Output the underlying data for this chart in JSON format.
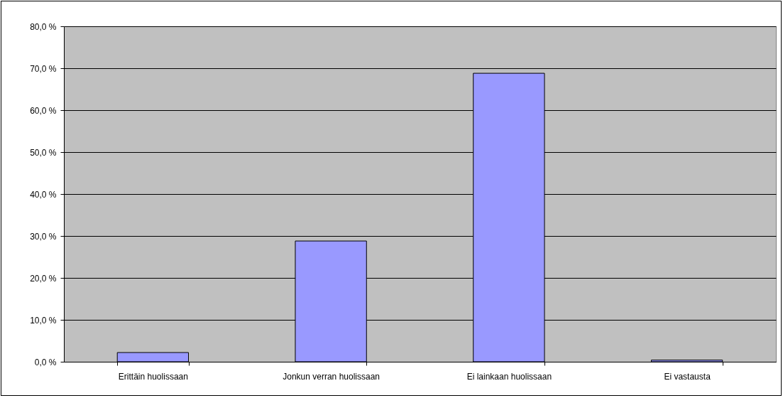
{
  "chart_data": {
    "type": "bar",
    "categories": [
      "Erittäin huolissaan",
      "Jonkun verran huolissaan",
      "Ei lainkaan huolissaan",
      "Ei vastausta"
    ],
    "values": [
      2.2,
      28.8,
      68.8,
      0.4
    ],
    "color": "#9999ff",
    "ylim": [
      0,
      80
    ],
    "yticks": [
      {
        "value": 0,
        "label": "0,0 %"
      },
      {
        "value": 10,
        "label": "10,0 %"
      },
      {
        "value": 20,
        "label": "20,0 %"
      },
      {
        "value": 30,
        "label": "30,0 %"
      },
      {
        "value": 40,
        "label": "40,0 %"
      },
      {
        "value": 50,
        "label": "50,0 %"
      },
      {
        "value": 60,
        "label": "60,0 %"
      },
      {
        "value": 70,
        "label": "70,0 %"
      },
      {
        "value": 80,
        "label": "80,0 %"
      }
    ],
    "grid": "y"
  }
}
